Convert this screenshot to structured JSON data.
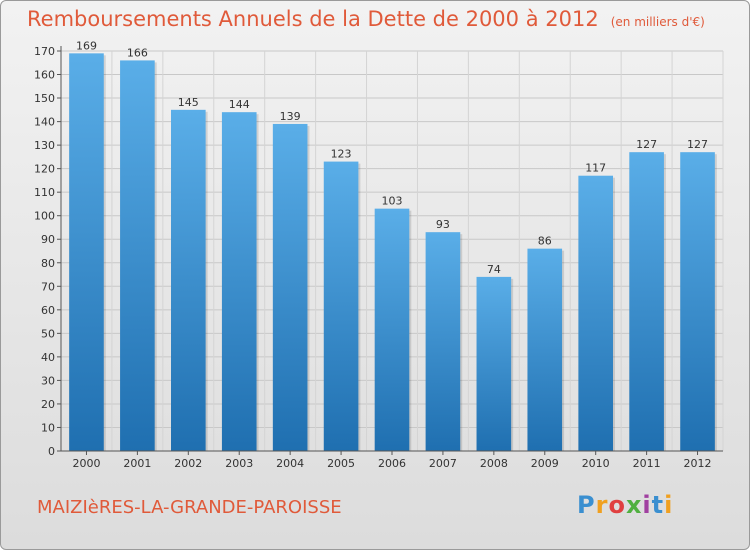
{
  "title": "Remboursements Annuels de la Dette de 2000 à 2012",
  "subtitle": "(en milliers d'€)",
  "commune": "MAIZIèRES-LA-GRANDE-PAROISSE",
  "logo": {
    "text": "Proxiti"
  },
  "colors": {
    "bar_top": "#5aaee8",
    "bar_bottom": "#1f6fb0",
    "title": "#e05a3a"
  },
  "chart_data": {
    "type": "bar",
    "categories": [
      "2000",
      "2001",
      "2002",
      "2003",
      "2004",
      "2005",
      "2006",
      "2007",
      "2008",
      "2009",
      "2010",
      "2011",
      "2012"
    ],
    "values": [
      169,
      166,
      145,
      144,
      139,
      123,
      103,
      93,
      74,
      86,
      117,
      127,
      127
    ],
    "title": "Remboursements Annuels de la Dette de 2000 à 2012",
    "xlabel": "",
    "ylabel": "",
    "ylim": [
      0,
      170
    ],
    "yticks": [
      0,
      10,
      20,
      30,
      40,
      50,
      60,
      70,
      80,
      90,
      100,
      110,
      120,
      130,
      140,
      150,
      160,
      170
    ],
    "grid": true
  }
}
